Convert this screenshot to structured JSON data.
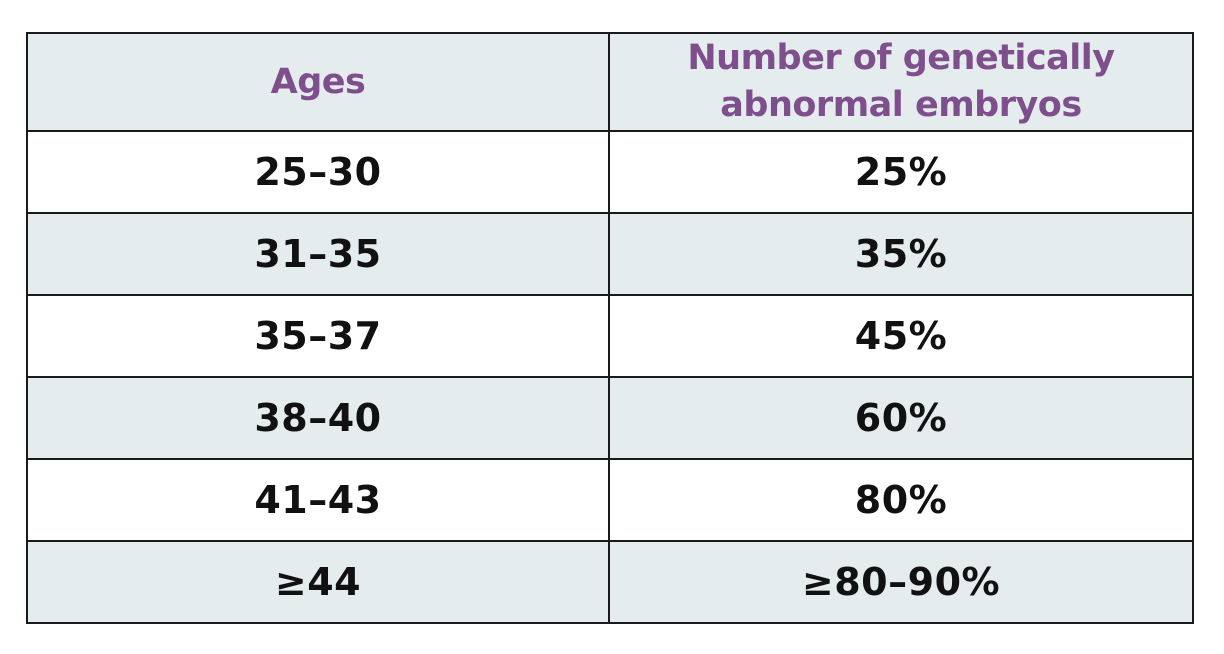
{
  "colors": {
    "header_text": "#7e4f8c",
    "shaded_row": "#e4ecee",
    "plain_row": "#ffffff",
    "border": "#1a1a1a",
    "body_text": "#111111"
  },
  "table": {
    "headers": {
      "ages": "Ages",
      "count_line1": "Number of genetically",
      "count_line2": "abnormal embryos"
    },
    "rows": [
      {
        "ages": "25–30",
        "value": "25%"
      },
      {
        "ages": "31–35",
        "value": "35%"
      },
      {
        "ages": "35–37",
        "value": "45%"
      },
      {
        "ages": "38–40",
        "value": "60%"
      },
      {
        "ages": "41–43",
        "value": "80%"
      },
      {
        "ages": "≥44",
        "value": "≥80–90%"
      }
    ]
  }
}
